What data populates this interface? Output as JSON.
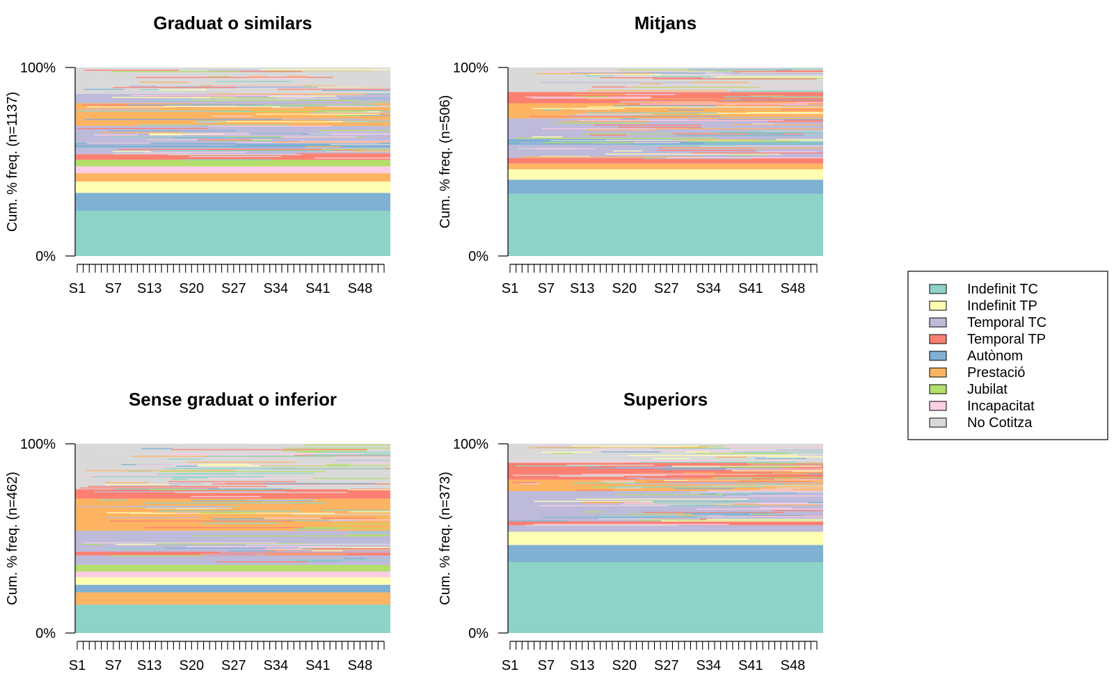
{
  "chart_data": {
    "type": "state-distribution",
    "states": [
      {
        "name": "Indefinit TC",
        "color": "#8DD3C7"
      },
      {
        "name": "Indefinit TP",
        "color": "#FFFFB3"
      },
      {
        "name": "Temporal TC",
        "color": "#BEBADA"
      },
      {
        "name": "Temporal TP",
        "color": "#FB8072"
      },
      {
        "name": "Autònom",
        "color": "#80B1D3"
      },
      {
        "name": "Prestació",
        "color": "#FDB462"
      },
      {
        "name": "Jubilat",
        "color": "#B3DE69"
      },
      {
        "name": "Incapacitat",
        "color": "#FCCDE5"
      },
      {
        "name": "No Cotitza",
        "color": "#D9D9D9"
      }
    ],
    "weeks": 52,
    "x_tick_labels": [
      {
        "label": "S1",
        "week": 1
      },
      {
        "label": "S7",
        "week": 7
      },
      {
        "label": "S13",
        "week": 13
      },
      {
        "label": "S20",
        "week": 20
      },
      {
        "label": "S27",
        "week": 27
      },
      {
        "label": "S34",
        "week": 34
      },
      {
        "label": "S41",
        "week": 41
      },
      {
        "label": "S48",
        "week": 48
      }
    ],
    "y_tick_labels": [
      "0%",
      "100%"
    ],
    "legend_position": "right",
    "panels": [
      {
        "title": "Graduat o similars",
        "ylabel": "Cum. % freq. (n=1137)",
        "bands": [
          {
            "state": "Indefinit TC",
            "from": 0.0,
            "to": 0.24
          },
          {
            "state": "Autònom",
            "from": 0.24,
            "to": 0.335
          },
          {
            "state": "Indefinit TP",
            "from": 0.335,
            "to": 0.395
          },
          {
            "state": "Prestació",
            "from": 0.395,
            "to": 0.44
          },
          {
            "state": "Incapacitat",
            "from": 0.44,
            "to": 0.475
          },
          {
            "state": "Jubilat",
            "from": 0.475,
            "to": 0.51
          },
          {
            "state": "Temporal TP",
            "from": 0.51,
            "to": 0.54
          },
          {
            "state": "Temporal TC",
            "from": 0.54,
            "to": 0.575
          },
          {
            "state": "Autònom",
            "from": 0.575,
            "to": 0.6
          },
          {
            "state": "Temporal TC",
            "from": 0.6,
            "to": 0.69
          },
          {
            "state": "Prestació",
            "from": 0.69,
            "to": 0.81
          },
          {
            "state": "Temporal TC",
            "from": 0.81,
            "to": 0.86
          },
          {
            "state": "No Cotitza",
            "from": 0.86,
            "to": 1.0
          }
        ]
      },
      {
        "title": "Mitjans",
        "ylabel": "Cum. % freq. (n=506)",
        "bands": [
          {
            "state": "Indefinit TC",
            "from": 0.0,
            "to": 0.33
          },
          {
            "state": "Autònom",
            "from": 0.33,
            "to": 0.405
          },
          {
            "state": "Indefinit TP",
            "from": 0.405,
            "to": 0.46
          },
          {
            "state": "Prestació",
            "from": 0.46,
            "to": 0.49
          },
          {
            "state": "Temporal TP",
            "from": 0.49,
            "to": 0.52
          },
          {
            "state": "Temporal TC",
            "from": 0.52,
            "to": 0.59
          },
          {
            "state": "Autònom",
            "from": 0.59,
            "to": 0.62
          },
          {
            "state": "Temporal TC",
            "from": 0.62,
            "to": 0.73
          },
          {
            "state": "Prestació",
            "from": 0.73,
            "to": 0.81
          },
          {
            "state": "Temporal TP",
            "from": 0.81,
            "to": 0.87
          },
          {
            "state": "No Cotitza",
            "from": 0.87,
            "to": 1.0
          }
        ]
      },
      {
        "title": "Sense graduat o inferior",
        "ylabel": "Cum. % freq. (n=462)",
        "bands": [
          {
            "state": "Indefinit TC",
            "from": 0.0,
            "to": 0.15
          },
          {
            "state": "Prestació",
            "from": 0.15,
            "to": 0.215
          },
          {
            "state": "Autònom",
            "from": 0.215,
            "to": 0.255
          },
          {
            "state": "Indefinit TP",
            "from": 0.255,
            "to": 0.295
          },
          {
            "state": "Incapacitat",
            "from": 0.295,
            "to": 0.325
          },
          {
            "state": "Jubilat",
            "from": 0.325,
            "to": 0.36
          },
          {
            "state": "Temporal TC",
            "from": 0.36,
            "to": 0.41
          },
          {
            "state": "Temporal TP",
            "from": 0.41,
            "to": 0.43
          },
          {
            "state": "Temporal TC",
            "from": 0.43,
            "to": 0.54
          },
          {
            "state": "Prestació",
            "from": 0.54,
            "to": 0.71
          },
          {
            "state": "Temporal TP",
            "from": 0.71,
            "to": 0.76
          },
          {
            "state": "No Cotitza",
            "from": 0.76,
            "to": 1.0
          }
        ]
      },
      {
        "title": "Superiors",
        "ylabel": "Cum. % freq. (n=373)",
        "bands": [
          {
            "state": "Indefinit TC",
            "from": 0.0,
            "to": 0.375
          },
          {
            "state": "Autònom",
            "from": 0.375,
            "to": 0.465
          },
          {
            "state": "Indefinit TP",
            "from": 0.465,
            "to": 0.535
          },
          {
            "state": "Temporal TC",
            "from": 0.535,
            "to": 0.57
          },
          {
            "state": "Temporal TP",
            "from": 0.57,
            "to": 0.59
          },
          {
            "state": "Temporal TC",
            "from": 0.59,
            "to": 0.75
          },
          {
            "state": "Prestació",
            "from": 0.75,
            "to": 0.81
          },
          {
            "state": "Temporal TP",
            "from": 0.81,
            "to": 0.9
          },
          {
            "state": "No Cotitza",
            "from": 0.9,
            "to": 1.0
          }
        ]
      }
    ]
  }
}
